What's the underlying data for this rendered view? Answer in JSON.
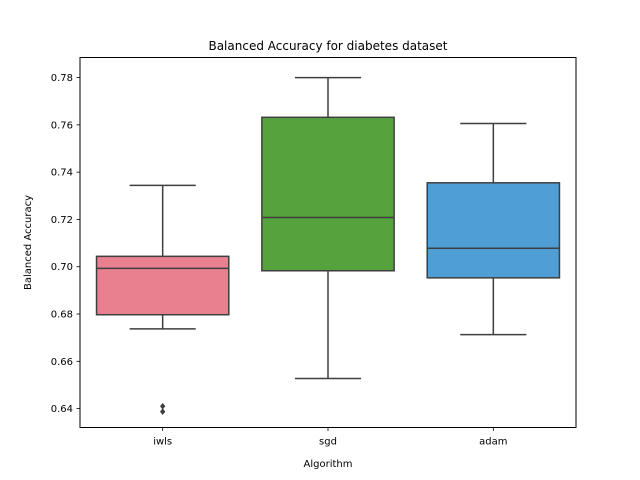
{
  "chart_data": {
    "type": "box",
    "title": "Balanced Accuracy for diabetes dataset",
    "xlabel": "Algorithm",
    "ylabel": "Balanced Accuracy",
    "ylim": [
      0.632,
      0.7885
    ],
    "yticks": [
      0.64,
      0.66,
      0.68,
      0.7,
      0.72,
      0.74,
      0.76,
      0.78
    ],
    "ytick_labels": [
      "0.64",
      "0.66",
      "0.68",
      "0.70",
      "0.72",
      "0.74",
      "0.76",
      "0.78"
    ],
    "categories": [
      "iwls",
      "sgd",
      "adam"
    ],
    "series": [
      {
        "name": "iwls",
        "color": "#e8808f",
        "whisker_low": 0.6737,
        "q1": 0.6797,
        "median": 0.6993,
        "q3": 0.7044,
        "whisker_high": 0.7344,
        "outliers": [
          0.6387,
          0.641
        ]
      },
      {
        "name": "sgd",
        "color": "#56a33e",
        "whisker_low": 0.6527,
        "q1": 0.6983,
        "median": 0.7208,
        "q3": 0.7632,
        "whisker_high": 0.78,
        "outliers": []
      },
      {
        "name": "adam",
        "color": "#4f9fd6",
        "whisker_low": 0.6713,
        "q1": 0.6953,
        "median": 0.7078,
        "q3": 0.7355,
        "whisker_high": 0.7606,
        "outliers": []
      }
    ],
    "grid": false,
    "legend": "none"
  }
}
